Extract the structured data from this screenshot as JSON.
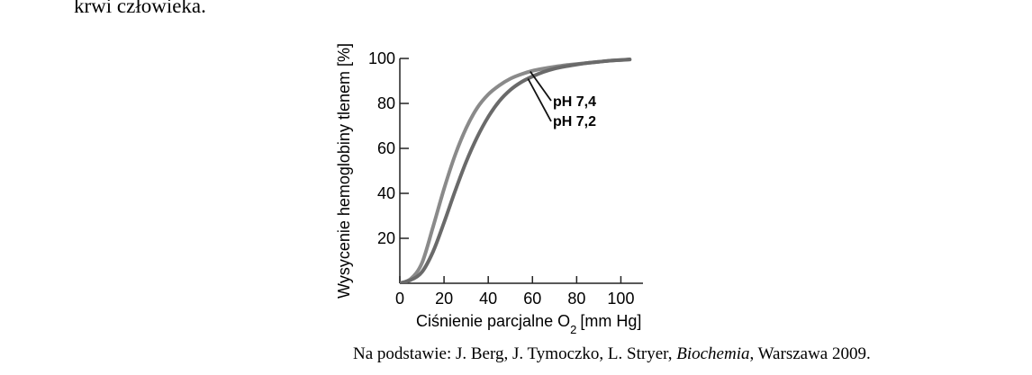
{
  "intro_text": "krwi człowieka.",
  "source": {
    "prefix": "Na podstawie: J. Berg, J. Tymoczko, L. Stryer,",
    "book": "Biochemia",
    "suffix": ", Warszawa 2009."
  },
  "chart_data": {
    "type": "line",
    "title": "",
    "xlabel_main": "Ciśnienie parcjalne O",
    "xlabel_sub": "2",
    "xlabel_unit": "[mm Hg]",
    "ylabel": "Wysycenie hemoglobiny tlenem [%]",
    "xlim": [
      0,
      110
    ],
    "ylim": [
      0,
      100
    ],
    "xticks": [
      0,
      20,
      40,
      60,
      80,
      100
    ],
    "yticks": [
      20,
      40,
      60,
      80,
      100
    ],
    "series": [
      {
        "name": "pH 7,4",
        "x": [
          0,
          5,
          10,
          15,
          20,
          25,
          30,
          35,
          40,
          45,
          50,
          55,
          60,
          65,
          70,
          75,
          80,
          85,
          90,
          95,
          100,
          104
        ],
        "values": [
          0,
          2,
          9,
          25,
          42,
          57,
          69,
          78,
          84,
          88,
          91,
          93,
          94.5,
          95.5,
          96.3,
          97,
          97.5,
          98,
          98.5,
          99,
          99.3,
          99.5
        ]
      },
      {
        "name": "pH 7,2",
        "x": [
          0,
          5,
          10,
          15,
          20,
          25,
          30,
          35,
          40,
          45,
          50,
          55,
          60,
          65,
          70,
          75,
          80,
          85,
          90,
          95,
          100,
          104
        ],
        "values": [
          0,
          1.5,
          5,
          14,
          27,
          41,
          54,
          65,
          74,
          81,
          86,
          89.5,
          92,
          94,
          95.5,
          96.5,
          97.3,
          98,
          98.5,
          99,
          99.3,
          99.6
        ]
      }
    ],
    "colors": {
      "pH 7,4": "#8a8a8a",
      "pH 7,2": "#6a6a6a"
    },
    "grid": false
  }
}
